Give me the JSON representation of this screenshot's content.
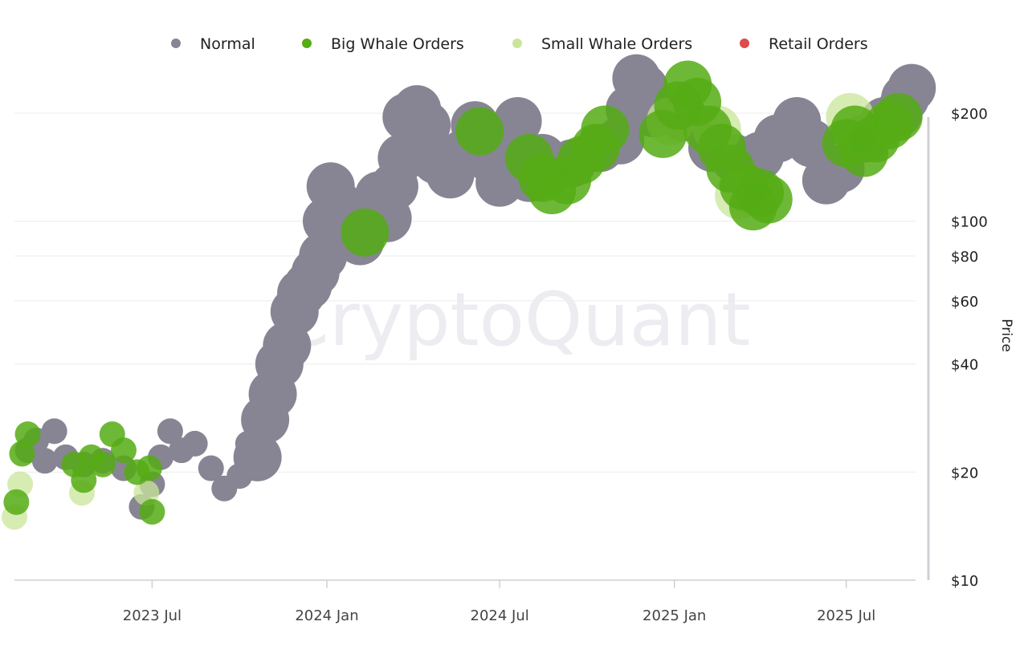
{
  "watermark": "CryptoQuant",
  "colors": {
    "normal": "#878593",
    "big_whale": "#55ac14",
    "small_whale": "#c9e59a",
    "retail": "#dd4b4b",
    "grid": "#ececec",
    "axis": "#cfcfd6"
  },
  "chart_data": {
    "type": "scatter",
    "ylabel": "Price",
    "yscale": "log",
    "ylim": [
      10,
      260
    ],
    "x_range": [
      "2023-02-06",
      "2025-09-12"
    ],
    "x_ticks": [
      {
        "date": "2023-07-01",
        "label": "2023 Jul"
      },
      {
        "date": "2024-01-01",
        "label": "2024 Jan"
      },
      {
        "date": "2024-07-01",
        "label": "2024 Jul"
      },
      {
        "date": "2025-01-01",
        "label": "2025 Jan"
      },
      {
        "date": "2025-07-01",
        "label": "2025 Jul"
      }
    ],
    "y_ticks": [
      {
        "value": 200,
        "label": "$200"
      },
      {
        "value": 100,
        "label": "$100"
      },
      {
        "value": 80,
        "label": "$80"
      },
      {
        "value": 60,
        "label": "$60"
      },
      {
        "value": 40,
        "label": "$40"
      },
      {
        "value": 20,
        "label": "$20"
      },
      {
        "value": 10,
        "label": "$10"
      }
    ],
    "legend": {
      "placement": "top",
      "entries": [
        "Normal",
        "Big Whale Orders",
        "Small Whale Orders",
        "Retail Orders"
      ]
    },
    "series": [
      {
        "name": "Normal",
        "color_key": "normal",
        "points": [
          [
            "2023-02-20",
            23
          ],
          [
            "2023-03-01",
            24.5
          ],
          [
            "2023-03-10",
            21.5
          ],
          [
            "2023-03-20",
            26
          ],
          [
            "2023-04-01",
            22
          ],
          [
            "2023-04-20",
            21
          ],
          [
            "2023-05-10",
            21.5
          ],
          [
            "2023-06-01",
            20.5
          ],
          [
            "2023-06-20",
            16
          ],
          [
            "2023-07-01",
            18.5
          ],
          [
            "2023-07-10",
            22
          ],
          [
            "2023-07-20",
            26
          ],
          [
            "2023-08-01",
            23
          ],
          [
            "2023-08-15",
            24
          ],
          [
            "2023-09-01",
            20.5
          ],
          [
            "2023-09-15",
            18
          ],
          [
            "2023-10-01",
            19.5
          ],
          [
            "2023-10-10",
            24
          ],
          [
            "2023-10-20",
            22
          ],
          [
            "2023-10-28",
            28
          ],
          [
            "2023-11-05",
            33
          ],
          [
            "2023-11-12",
            40
          ],
          [
            "2023-11-20",
            45
          ],
          [
            "2023-11-28",
            56
          ],
          [
            "2023-12-05",
            63
          ],
          [
            "2023-12-12",
            66
          ],
          [
            "2023-12-20",
            72
          ],
          [
            "2023-12-28",
            80
          ],
          [
            "2024-01-01",
            100
          ],
          [
            "2024-01-05",
            125
          ],
          [
            "2024-01-15",
            110
          ],
          [
            "2024-01-25",
            95
          ],
          [
            "2024-02-05",
            88
          ],
          [
            "2024-02-15",
            100
          ],
          [
            "2024-02-25",
            118
          ],
          [
            "2024-03-05",
            102
          ],
          [
            "2024-03-12",
            125
          ],
          [
            "2024-03-20",
            150
          ],
          [
            "2024-03-25",
            195
          ],
          [
            "2024-04-05",
            205
          ],
          [
            "2024-04-15",
            185
          ],
          [
            "2024-04-25",
            148
          ],
          [
            "2024-05-10",
            135
          ],
          [
            "2024-05-25",
            155
          ],
          [
            "2024-06-05",
            185
          ],
          [
            "2024-06-20",
            150
          ],
          [
            "2024-07-01",
            128
          ],
          [
            "2024-07-10",
            165
          ],
          [
            "2024-07-20",
            190
          ],
          [
            "2024-08-01",
            132
          ],
          [
            "2024-08-15",
            150
          ],
          [
            "2024-09-15",
            145
          ],
          [
            "2024-10-15",
            160
          ],
          [
            "2024-11-05",
            168
          ],
          [
            "2024-11-15",
            205
          ],
          [
            "2024-11-22",
            250
          ],
          [
            "2024-11-30",
            235
          ],
          [
            "2024-12-10",
            200
          ],
          [
            "2025-01-10",
            195
          ],
          [
            "2025-02-10",
            160
          ],
          [
            "2025-03-05",
            150
          ],
          [
            "2025-04-01",
            152
          ],
          [
            "2025-04-20",
            170
          ],
          [
            "2025-05-10",
            190
          ],
          [
            "2025-05-25",
            165
          ],
          [
            "2025-06-10",
            130
          ],
          [
            "2025-06-25",
            140
          ],
          [
            "2025-07-20",
            170
          ],
          [
            "2025-08-10",
            190
          ],
          [
            "2025-08-25",
            200
          ],
          [
            "2025-09-01",
            220
          ],
          [
            "2025-09-08",
            235
          ]
        ]
      },
      {
        "name": "Big Whale Orders",
        "color_key": "big_whale",
        "points": [
          [
            "2023-02-08",
            16.5
          ],
          [
            "2023-02-14",
            22.5
          ],
          [
            "2023-02-20",
            25.5
          ],
          [
            "2023-04-10",
            21
          ],
          [
            "2023-04-20",
            19
          ],
          [
            "2023-04-28",
            22
          ],
          [
            "2023-05-10",
            21
          ],
          [
            "2023-05-20",
            25.5
          ],
          [
            "2023-06-01",
            23
          ],
          [
            "2023-06-15",
            20
          ],
          [
            "2023-06-28",
            20.5
          ],
          [
            "2023-07-01",
            15.5
          ],
          [
            "2024-02-10",
            93
          ],
          [
            "2024-06-10",
            178
          ],
          [
            "2024-08-01",
            150
          ],
          [
            "2024-08-15",
            132
          ],
          [
            "2024-08-25",
            122
          ],
          [
            "2024-09-10",
            130
          ],
          [
            "2024-09-25",
            148
          ],
          [
            "2024-10-10",
            160
          ],
          [
            "2024-10-20",
            180
          ],
          [
            "2024-12-20",
            175
          ],
          [
            "2025-01-05",
            210
          ],
          [
            "2025-01-15",
            240
          ],
          [
            "2025-01-25",
            215
          ],
          [
            "2025-02-05",
            180
          ],
          [
            "2025-02-20",
            160
          ],
          [
            "2025-03-01",
            140
          ],
          [
            "2025-03-15",
            125
          ],
          [
            "2025-03-25",
            110
          ],
          [
            "2025-04-01",
            120
          ],
          [
            "2025-04-10",
            115
          ],
          [
            "2025-07-01",
            165
          ],
          [
            "2025-07-10",
            180
          ],
          [
            "2025-07-20",
            155
          ],
          [
            "2025-08-01",
            170
          ],
          [
            "2025-08-15",
            185
          ],
          [
            "2025-08-25",
            195
          ]
        ]
      },
      {
        "name": "Small Whale Orders",
        "color_key": "small_whale",
        "points": [
          [
            "2023-02-06",
            15
          ],
          [
            "2023-02-12",
            18.5
          ],
          [
            "2023-04-18",
            17.5
          ],
          [
            "2023-06-25",
            17.5
          ],
          [
            "2024-12-28",
            190
          ],
          [
            "2025-02-15",
            180
          ],
          [
            "2025-03-10",
            118
          ],
          [
            "2025-07-05",
            195
          ]
        ]
      },
      {
        "name": "Retail Orders",
        "color_key": "retail",
        "points": []
      }
    ]
  }
}
